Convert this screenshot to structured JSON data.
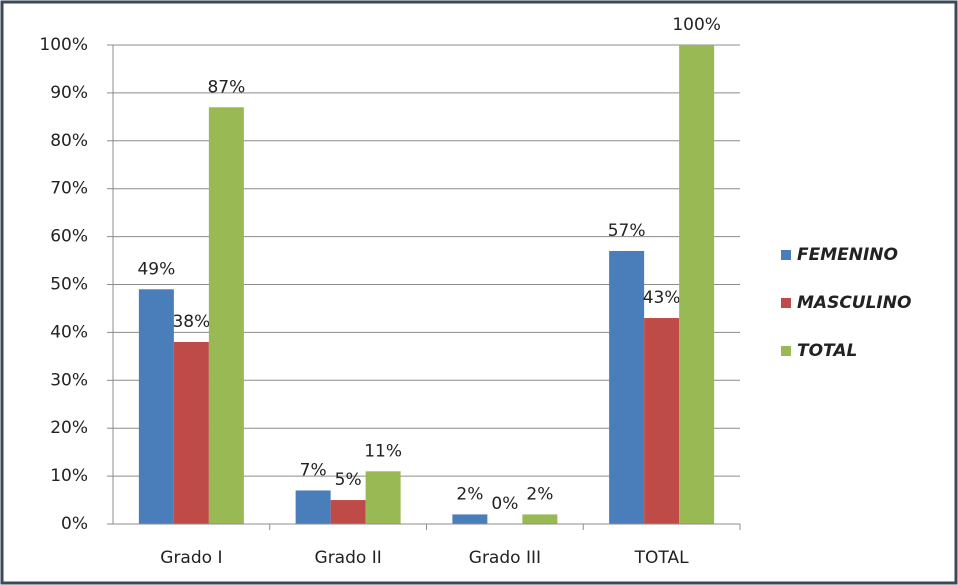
{
  "chart_data": {
    "type": "bar",
    "categories": [
      "Grado I",
      "Grado II",
      "Grado III",
      "TOTAL"
    ],
    "series": [
      {
        "name": "FEMENINO",
        "color": "#4a7ebb",
        "values": [
          49,
          7,
          2,
          57
        ],
        "value_labels": [
          "49%",
          "7%",
          "2%",
          "57%"
        ]
      },
      {
        "name": "MASCULINO",
        "color": "#be4b48",
        "values": [
          38,
          5,
          0,
          43
        ],
        "value_labels": [
          "38%",
          "5%",
          "0%",
          "43%"
        ]
      },
      {
        "name": "TOTAL",
        "color": "#98b954",
        "values": [
          87,
          11,
          2,
          100
        ],
        "value_labels": [
          "87%",
          "11%",
          "2%",
          "100%"
        ]
      }
    ],
    "ylim": [
      0,
      100
    ],
    "yticks": [
      {
        "value": 0,
        "label": "0%"
      },
      {
        "value": 10,
        "label": "10%"
      },
      {
        "value": 20,
        "label": "20%"
      },
      {
        "value": 30,
        "label": "30%"
      },
      {
        "value": 40,
        "label": "40%"
      },
      {
        "value": 50,
        "label": "50%"
      },
      {
        "value": 60,
        "label": "60%"
      },
      {
        "value": 70,
        "label": "70%"
      },
      {
        "value": 80,
        "label": "80%"
      },
      {
        "value": 90,
        "label": "90%"
      },
      {
        "value": 100,
        "label": "100%"
      }
    ],
    "grid": true,
    "legend": "right"
  }
}
